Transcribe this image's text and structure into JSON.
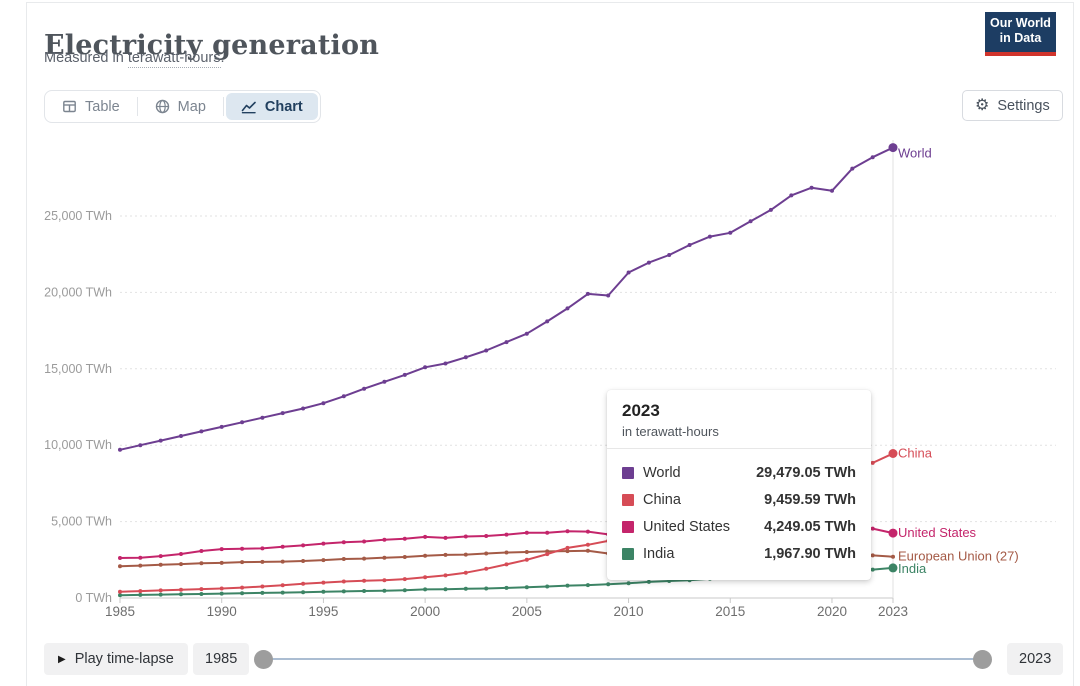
{
  "header": {
    "title": "Electricity generation",
    "subtitle_prefix": "Measured in ",
    "subtitle_link": "terawatt-hours",
    "subtitle_suffix": ".",
    "logo_line1": "Our World",
    "logo_line2": "in Data",
    "logo_bg": "#1d3d63",
    "logo_stripe": "#d0342c"
  },
  "tabs": [
    {
      "label": "Table",
      "active": false
    },
    {
      "label": "Map",
      "active": false
    },
    {
      "label": "Chart",
      "active": true
    }
  ],
  "settings_label": "Settings",
  "chart_data": {
    "type": "line",
    "title": "Electricity generation",
    "unit": "TWh",
    "grid": true,
    "highlight_year": 2023,
    "ylim": [
      0,
      29500
    ],
    "x": [
      1985,
      1986,
      1987,
      1988,
      1989,
      1990,
      1991,
      1992,
      1993,
      1994,
      1995,
      1996,
      1997,
      1998,
      1999,
      2000,
      2001,
      2002,
      2003,
      2004,
      2005,
      2006,
      2007,
      2008,
      2009,
      2010,
      2011,
      2012,
      2013,
      2014,
      2015,
      2016,
      2017,
      2018,
      2019,
      2020,
      2021,
      2022,
      2023
    ],
    "yticks": [
      {
        "value": 0,
        "label": "0 TWh"
      },
      {
        "value": 5000,
        "label": "5,000 TWh"
      },
      {
        "value": 10000,
        "label": "10,000 TWh"
      },
      {
        "value": 15000,
        "label": "15,000 TWh"
      },
      {
        "value": 20000,
        "label": "20,000 TWh"
      },
      {
        "value": 25000,
        "label": "25,000 TWh"
      }
    ],
    "xticks": [
      {
        "year": 1985,
        "label": "1985"
      },
      {
        "year": 1990,
        "label": "1990"
      },
      {
        "year": 1995,
        "label": "1995"
      },
      {
        "year": 2000,
        "label": "2000"
      },
      {
        "year": 2005,
        "label": "2005"
      },
      {
        "year": 2010,
        "label": "2010"
      },
      {
        "year": 2015,
        "label": "2015"
      },
      {
        "year": 2020,
        "label": "2020"
      },
      {
        "year": 2023,
        "label": "2023"
      }
    ],
    "series": [
      {
        "name": "European Union (27)",
        "color": "#a45a46",
        "end_dot": false,
        "label_dy": 0,
        "values": [
          2080,
          2120,
          2180,
          2220,
          2270,
          2300,
          2350,
          2360,
          2380,
          2420,
          2480,
          2550,
          2580,
          2640,
          2680,
          2760,
          2820,
          2840,
          2910,
          2980,
          3010,
          3050,
          3070,
          3090,
          2910,
          3020,
          2970,
          2980,
          2940,
          2870,
          2900,
          2910,
          2940,
          2930,
          2870,
          2760,
          2890,
          2790,
          2700
        ]
      },
      {
        "name": "United States",
        "color": "#c4256b",
        "end_dot": true,
        "label_dy": 0,
        "values": [
          2620,
          2640,
          2740,
          2880,
          3075,
          3200,
          3225,
          3245,
          3360,
          3445,
          3560,
          3650,
          3700,
          3815,
          3880,
          4000,
          3930,
          4025,
          4055,
          4150,
          4270,
          4275,
          4365,
          4345,
          4165,
          4355,
          4325,
          4270,
          4315,
          4355,
          4320,
          4330,
          4270,
          4435,
          4385,
          4260,
          4405,
          4545,
          4249.05
        ]
      },
      {
        "name": "India",
        "color": "#3c8465",
        "end_dot": true,
        "label_dy": 1,
        "values": [
          185,
          200,
          220,
          240,
          265,
          290,
          315,
          335,
          355,
          380,
          410,
          430,
          455,
          480,
          510,
          560,
          575,
          600,
          625,
          660,
          700,
          750,
          810,
          845,
          900,
          960,
          1055,
          1115,
          1160,
          1260,
          1355,
          1425,
          1500,
          1585,
          1625,
          1560,
          1715,
          1860,
          1967.9
        ]
      },
      {
        "name": "China",
        "color": "#d64c56",
        "end_dot": true,
        "label_dy": 0,
        "values": [
          410,
          450,
          500,
          545,
          585,
          620,
          680,
          755,
          840,
          930,
          1010,
          1080,
          1135,
          1165,
          1240,
          1355,
          1480,
          1655,
          1910,
          2200,
          2500,
          2870,
          3280,
          3480,
          3740,
          4230,
          4710,
          4990,
          5450,
          5680,
          5860,
          6130,
          6600,
          7170,
          7500,
          7780,
          8530,
          8840,
          9459.59
        ]
      },
      {
        "name": "World",
        "color": "#6d3e91",
        "end_dot": true,
        "label_dy": 6,
        "values": [
          9700,
          10000,
          10300,
          10600,
          10900,
          11200,
          11500,
          11800,
          12100,
          12400,
          12750,
          13200,
          13700,
          14150,
          14600,
          15100,
          15350,
          15750,
          16200,
          16750,
          17300,
          18100,
          18950,
          19900,
          19800,
          21300,
          21950,
          22450,
          23100,
          23650,
          23900,
          24650,
          25400,
          26350,
          26850,
          26650,
          28100,
          28850,
          29479.05
        ]
      }
    ]
  },
  "tooltip": {
    "year": "2023",
    "subtitle": "in terawatt-hours",
    "rows": [
      {
        "entity": "World",
        "value": "29,479.05 TWh",
        "color": "#6d3e91"
      },
      {
        "entity": "China",
        "value": "9,459.59 TWh",
        "color": "#d64c56"
      },
      {
        "entity": "United States",
        "value": "4,249.05 TWh",
        "color": "#c4256b"
      },
      {
        "entity": "India",
        "value": "1,967.90 TWh",
        "color": "#3c8465"
      }
    ]
  },
  "timeline": {
    "play_label": "Play time-lapse",
    "start_year": "1985",
    "end_year": "2023"
  }
}
